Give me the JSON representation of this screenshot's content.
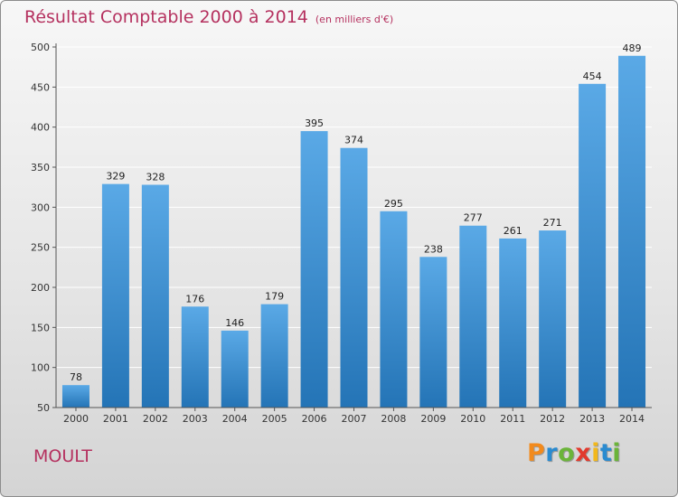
{
  "header": {
    "title": "Résultat Comptable 2000 à 2014",
    "unit": "(en milliers d'€)"
  },
  "commune": "MOULT",
  "brand": {
    "letters": [
      "P",
      "r",
      "o",
      "x",
      "i",
      "t",
      "i"
    ],
    "colors": [
      "#f28a1c",
      "#2a8bd0",
      "#6bb43a",
      "#e23a2d",
      "#f2b81c",
      "#2a8bd0",
      "#6bb43a"
    ]
  },
  "colors": {
    "bar_light": "#5aa9e6",
    "bar_dark": "#2474b6",
    "grid": "#ffffff",
    "axis": "#555555"
  },
  "chart_data": {
    "type": "bar",
    "title": "Résultat Comptable 2000 à 2014",
    "categories": [
      "2000",
      "2001",
      "2002",
      "2003",
      "2004",
      "2005",
      "2006",
      "2007",
      "2008",
      "2009",
      "2010",
      "2011",
      "2012",
      "2013",
      "2014"
    ],
    "values": [
      78,
      329,
      328,
      176,
      146,
      179,
      395,
      374,
      295,
      238,
      277,
      261,
      271,
      454,
      489
    ],
    "ylim": [
      50,
      500
    ],
    "yticks": [
      50,
      100,
      150,
      200,
      250,
      300,
      350,
      400,
      450,
      500
    ],
    "grid": true,
    "data_labels": true
  }
}
